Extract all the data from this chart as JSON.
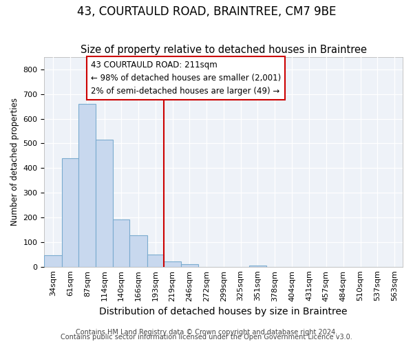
{
  "title": "43, COURTAULD ROAD, BRAINTREE, CM7 9BE",
  "subtitle": "Size of property relative to detached houses in Braintree",
  "xlabel": "Distribution of detached houses by size in Braintree",
  "ylabel": "Number of detached properties",
  "footer1": "Contains HM Land Registry data © Crown copyright and database right 2024.",
  "footer2": "Contains public sector information licensed under the Open Government Licence v3.0.",
  "annotation_title": "43 COURTAULD ROAD: 211sqm",
  "annotation_line1": "← 98% of detached houses are smaller (2,001)",
  "annotation_line2": "2% of semi-detached houses are larger (49) →",
  "bar_categories": [
    "34sqm",
    "61sqm",
    "87sqm",
    "114sqm",
    "140sqm",
    "166sqm",
    "193sqm",
    "219sqm",
    "246sqm",
    "272sqm",
    "299sqm",
    "325sqm",
    "351sqm",
    "378sqm",
    "404sqm",
    "431sqm",
    "457sqm",
    "484sqm",
    "510sqm",
    "537sqm",
    "563sqm"
  ],
  "bar_values": [
    47,
    440,
    660,
    515,
    192,
    127,
    48,
    22,
    10,
    0,
    0,
    0,
    5,
    0,
    0,
    0,
    0,
    0,
    0,
    0,
    0
  ],
  "bar_edges": [
    34,
    61,
    87,
    114,
    140,
    166,
    193,
    219,
    246,
    272,
    299,
    325,
    351,
    378,
    404,
    431,
    457,
    484,
    510,
    537,
    563,
    589
  ],
  "bar_color": "#c8d8ee",
  "bar_edge_color": "#7aabcf",
  "vline_x": 219,
  "vline_color": "#cc0000",
  "ylim": [
    0,
    850
  ],
  "yticks": [
    0,
    100,
    200,
    300,
    400,
    500,
    600,
    700,
    800
  ],
  "bg_color": "#eef2f8",
  "grid_color": "#ffffff",
  "fig_bg": "#ffffff",
  "title_fontsize": 12,
  "subtitle_fontsize": 10.5,
  "xlabel_fontsize": 10,
  "ylabel_fontsize": 8.5,
  "tick_fontsize": 8,
  "annotation_fontsize": 8.5,
  "footer_fontsize": 7,
  "annotation_box_color": "#ffffff",
  "annotation_box_edge": "#cc0000"
}
